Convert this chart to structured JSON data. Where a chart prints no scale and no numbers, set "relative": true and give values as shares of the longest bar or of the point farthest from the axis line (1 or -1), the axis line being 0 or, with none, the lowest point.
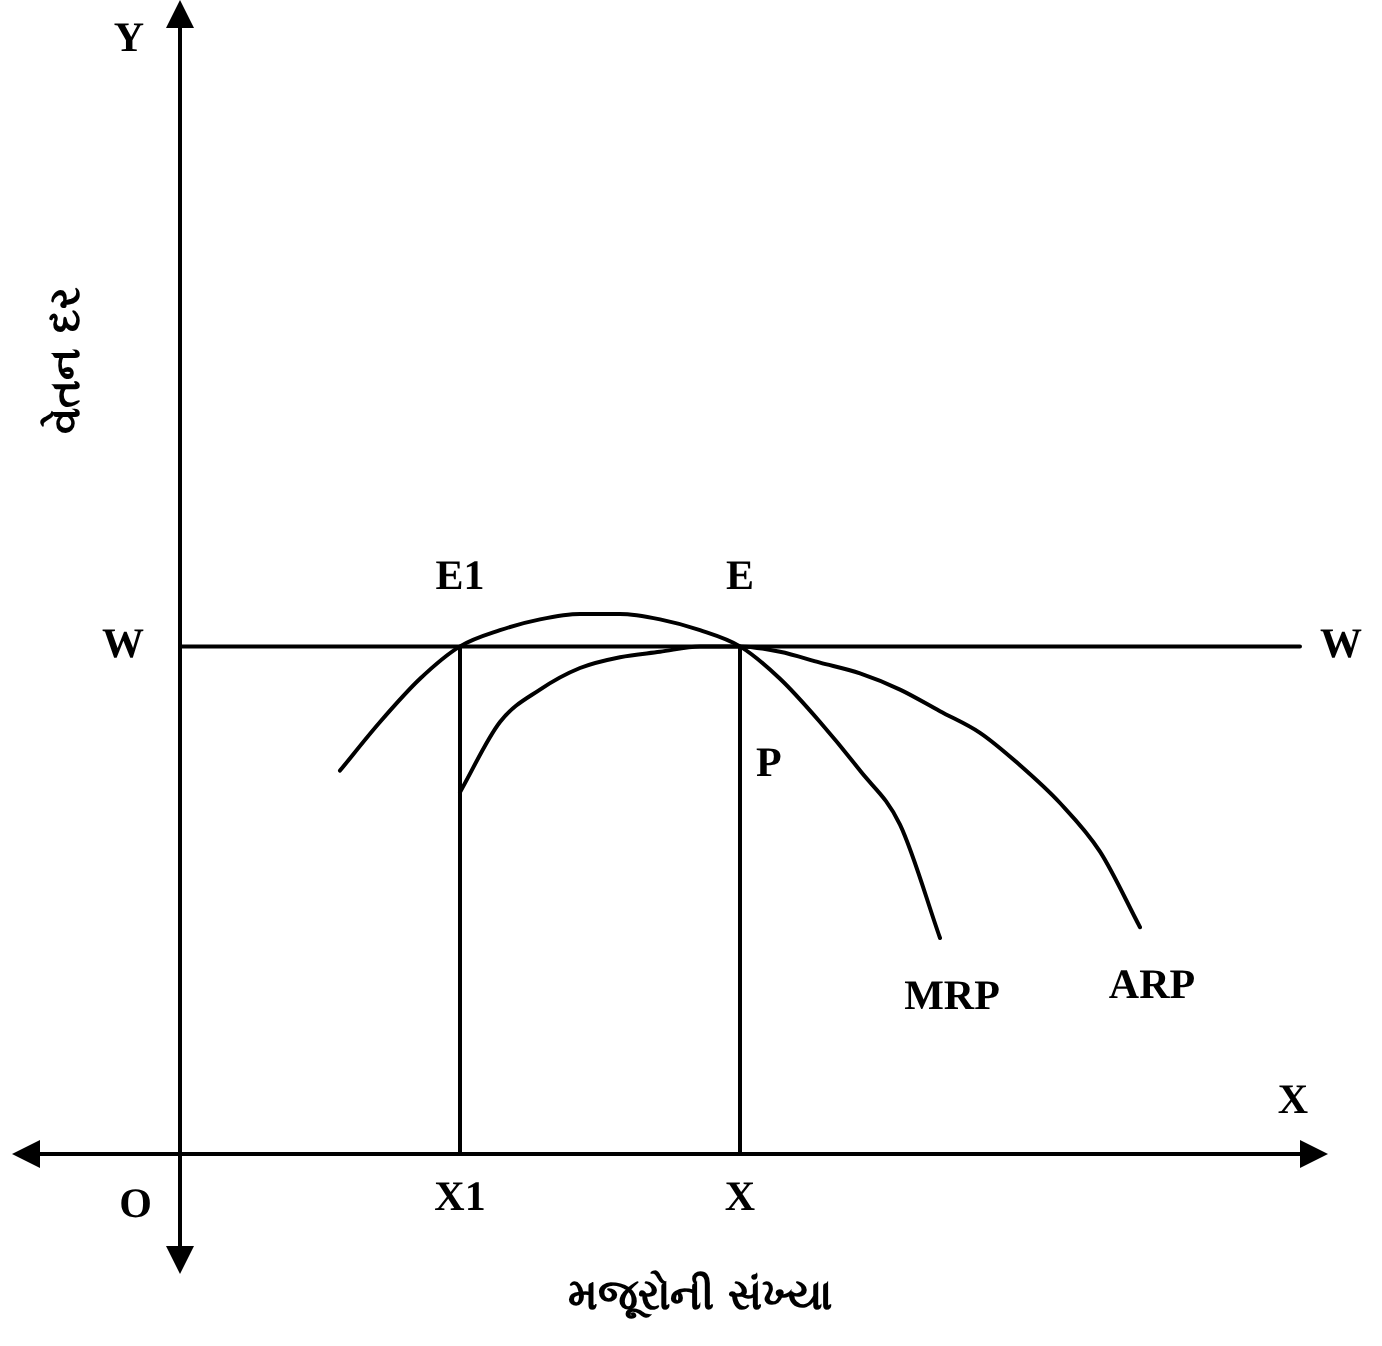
{
  "chart_data": {
    "type": "line",
    "relative": true,
    "xlabel": "મજૂરોની સંખ્યા",
    "ylabel": "વેતન દર",
    "categories": [
      null,
      null,
      null,
      null,
      null,
      null,
      null,
      "X1",
      null,
      null,
      null,
      null,
      null,
      null,
      "X",
      null,
      null,
      null,
      null,
      null,
      null,
      null,
      null,
      null,
      null,
      null,
      null,
      null,
      null
    ],
    "series": [
      {
        "name": "W",
        "color": "#000000",
        "values": [
          0.94,
          0.94,
          0.94,
          0.94,
          0.94,
          0.94,
          0.94,
          0.94,
          0.94,
          0.94,
          0.94,
          0.94,
          0.94,
          0.94,
          0.94,
          0.94,
          0.94,
          0.94,
          0.94,
          0.94,
          0.94,
          0.94,
          0.94,
          0.94,
          0.94,
          0.94,
          0.94,
          0.94,
          0.94
        ]
      },
      {
        "name": "MRP",
        "color": "#000000",
        "values": [
          null,
          null,
          null,
          null,
          0.71,
          0.8,
          0.88,
          0.94,
          0.97,
          0.99,
          1.0,
          1.0,
          0.99,
          0.97,
          0.94,
          0.88,
          0.8,
          0.71,
          0.61,
          0.4,
          null,
          null,
          null,
          null,
          null,
          null,
          null,
          null,
          null
        ]
      },
      {
        "name": "ARP",
        "color": "#000000",
        "values": [
          null,
          null,
          null,
          null,
          null,
          null,
          null,
          0.67,
          0.8,
          0.86,
          0.9,
          0.92,
          0.93,
          0.94,
          0.94,
          0.93,
          0.91,
          0.89,
          0.86,
          0.82,
          0.78,
          0.72,
          0.65,
          0.56,
          0.42,
          null,
          null,
          null,
          null
        ]
      }
    ],
    "ref_lines": [
      {
        "axis": "x",
        "value": "X1",
        "color": "#000000"
      },
      {
        "axis": "x",
        "value": "X",
        "color": "#000000"
      }
    ],
    "annotations": [
      {
        "text": "E1",
        "x": "X1",
        "y": 0.94
      },
      {
        "text": "E",
        "x": "X",
        "y": 0.94
      },
      {
        "text": "P",
        "x": "X",
        "y": 0.72
      },
      "Y",
      "X",
      "O",
      "W"
    ],
    "marker": "none",
    "line_style": "solid",
    "grid": false,
    "legend": false
  }
}
